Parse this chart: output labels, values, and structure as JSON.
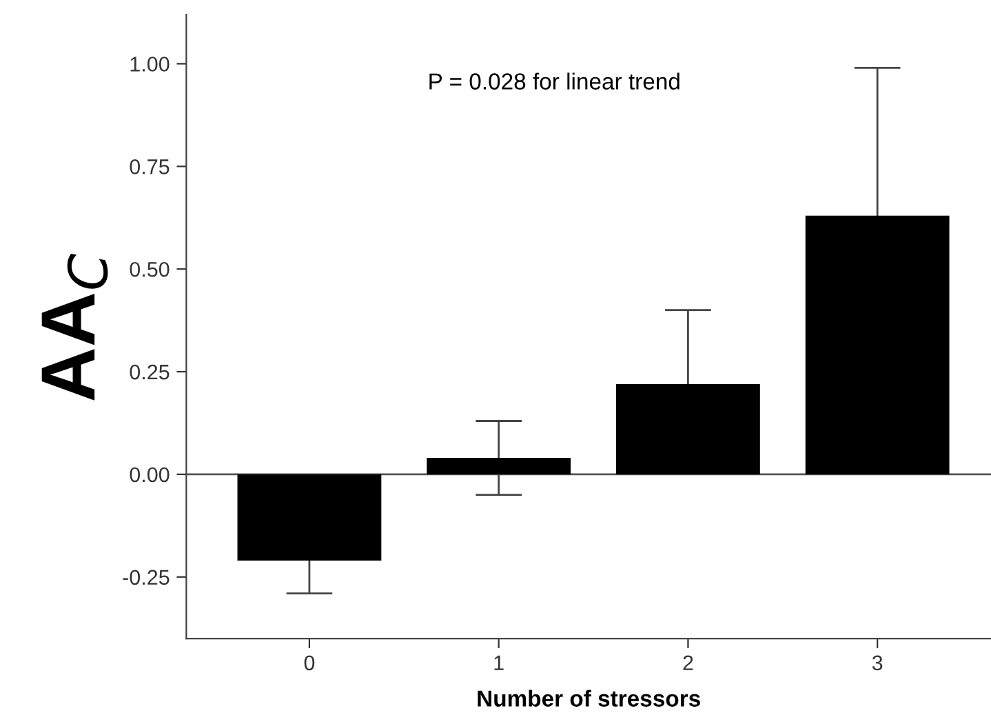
{
  "chart_data": {
    "type": "bar",
    "xlabel": "Number of stressors",
    "ylabel": "AA$_{C}$",
    "categories": [
      "0",
      "1",
      "2",
      "3"
    ],
    "values": [
      -0.21,
      0.04,
      0.22,
      0.63
    ],
    "errors": [
      0.08,
      0.09,
      0.18,
      0.36
    ],
    "color": "#000000",
    "ylim": [
      -0.4,
      1.12
    ],
    "yticks": [
      {
        "value": -0.25,
        "label": "-0.25"
      },
      {
        "value": 0,
        "label": "0.00"
      },
      {
        "value": 0.25,
        "label": "0.25"
      },
      {
        "value": 0.5,
        "label": "0.50"
      },
      {
        "value": 0.75,
        "label": "0.75"
      },
      {
        "value": 1,
        "label": "1.00"
      }
    ],
    "ref_lines": [
      {
        "axis": "y",
        "value": 0,
        "color": "#555555"
      }
    ],
    "annotations": [
      "P = 0.028 for linear trend"
    ],
    "grid": false,
    "legend": false
  }
}
